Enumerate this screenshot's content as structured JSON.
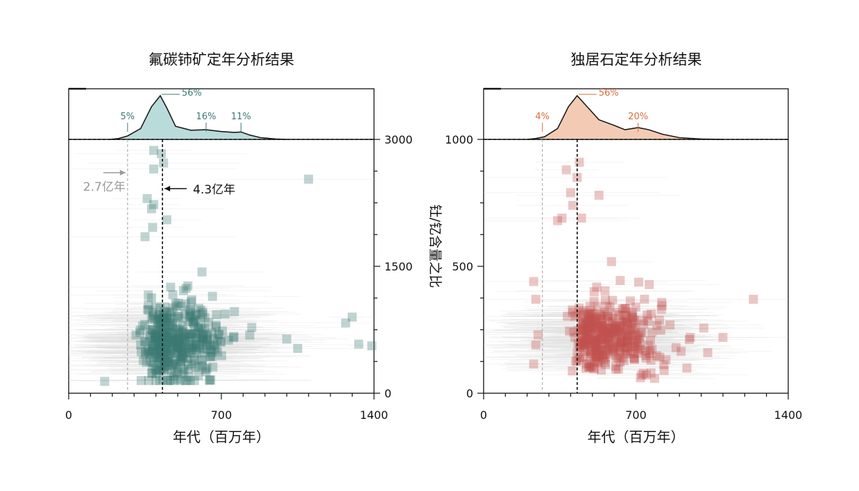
{
  "figure": {
    "axis_labels": {
      "x": "年代（百万年）",
      "y_right_shared": "钍/钇含量之比"
    }
  },
  "chart_data": [
    {
      "type": "scatter",
      "panel": "left",
      "title": "氟碳铈矿定年分析结果",
      "xlabel": "年代（百万年）",
      "ylabel": "钍/钇含量之比",
      "xlim": [
        0,
        1400
      ],
      "ylim": [
        0,
        3000
      ],
      "x_ticks": [
        0,
        700,
        1400
      ],
      "y_ticks": [
        0,
        1500,
        3000
      ],
      "y_axis_side": "right",
      "colors": {
        "points": "#3a7a72",
        "density_fill": "#b9dcda",
        "density_line": "#1a1a1a",
        "annotation": "#3a7a72",
        "reference_line": "#b0b0b0"
      },
      "density_peaks": [
        {
          "label": "5%",
          "x": 270
        },
        {
          "label": "56%",
          "x": 420
        },
        {
          "label": "16%",
          "x": 630
        },
        {
          "label": "11%",
          "x": 790
        }
      ],
      "reference_lines": [
        {
          "x": 270,
          "style": "dashed-gray",
          "label": "2.7亿年",
          "arrow": "right"
        },
        {
          "x": 430,
          "style": "dashed-black",
          "label": "4.3亿年",
          "arrow": "left"
        }
      ],
      "scatter_outliers": [
        {
          "x": 165,
          "y": 140
        },
        {
          "x": 390,
          "y": 2870
        },
        {
          "x": 425,
          "y": 2830
        },
        {
          "x": 435,
          "y": 2720
        },
        {
          "x": 390,
          "y": 2650
        },
        {
          "x": 1100,
          "y": 2530
        },
        {
          "x": 360,
          "y": 2300
        },
        {
          "x": 390,
          "y": 2230
        },
        {
          "x": 380,
          "y": 2180
        },
        {
          "x": 450,
          "y": 2050
        },
        {
          "x": 385,
          "y": 1960
        },
        {
          "x": 1300,
          "y": 900
        },
        {
          "x": 1270,
          "y": 830
        },
        {
          "x": 1330,
          "y": 580
        },
        {
          "x": 1390,
          "y": 560
        },
        {
          "x": 1050,
          "y": 530
        },
        {
          "x": 1000,
          "y": 640
        },
        {
          "x": 350,
          "y": 1850
        }
      ],
      "scatter_cluster": {
        "center_x": 440,
        "center_y": 600,
        "count": 420
      }
    },
    {
      "type": "scatter",
      "panel": "right",
      "title": "独居石定年分析结果",
      "xlabel": "年代（百万年）",
      "ylabel": "钍/钇含量之比",
      "xlim": [
        0,
        1400
      ],
      "ylim": [
        0,
        1000
      ],
      "x_ticks": [
        0,
        700,
        1400
      ],
      "y_ticks": [
        0,
        500,
        1000
      ],
      "y_axis_side": "left",
      "colors": {
        "points": "#c0504d",
        "density_fill": "#f3cbb4",
        "density_line": "#1a1a1a",
        "annotation": "#d96b3a",
        "reference_line": "#b0b0b0"
      },
      "density_peaks": [
        {
          "label": "4%",
          "x": 270
        },
        {
          "label": "56%",
          "x": 430
        },
        {
          "label": "20%",
          "x": 710
        }
      ],
      "reference_lines": [
        {
          "x": 270,
          "style": "dashed-gray"
        },
        {
          "x": 430,
          "style": "dashed-black"
        }
      ],
      "scatter_outliers": [
        {
          "x": 440,
          "y": 910
        },
        {
          "x": 430,
          "y": 850
        },
        {
          "x": 380,
          "y": 880
        },
        {
          "x": 400,
          "y": 790
        },
        {
          "x": 410,
          "y": 740
        },
        {
          "x": 530,
          "y": 780
        },
        {
          "x": 340,
          "y": 680
        },
        {
          "x": 360,
          "y": 690
        },
        {
          "x": 450,
          "y": 690
        },
        {
          "x": 1240,
          "y": 370
        },
        {
          "x": 230,
          "y": 440
        },
        {
          "x": 240,
          "y": 370
        },
        {
          "x": 250,
          "y": 230
        },
        {
          "x": 240,
          "y": 190
        },
        {
          "x": 230,
          "y": 115
        },
        {
          "x": 1100,
          "y": 220
        },
        {
          "x": 1030,
          "y": 160
        },
        {
          "x": 950,
          "y": 220
        }
      ],
      "scatter_cluster": {
        "center_x": 520,
        "center_y": 230,
        "count": 380
      }
    }
  ]
}
